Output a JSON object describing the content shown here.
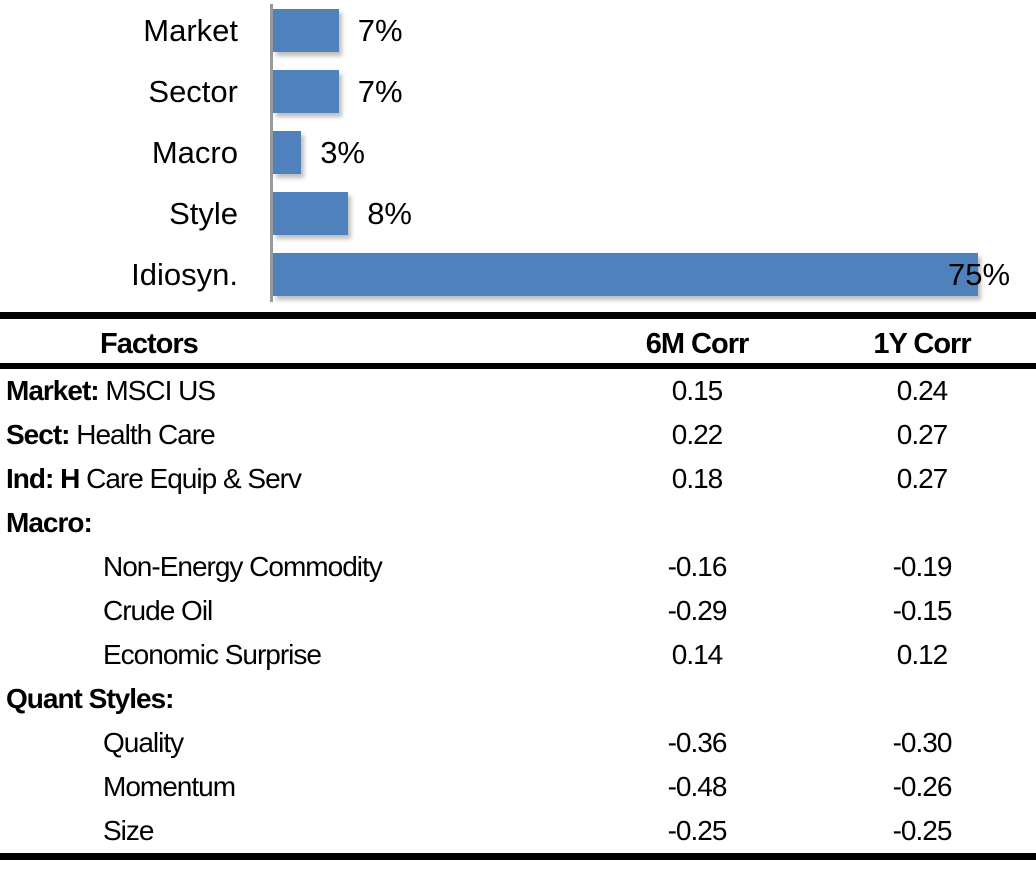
{
  "colors": {
    "bar": "#4f81bd",
    "axis": "#9a9a9a",
    "rule": "#000000",
    "text": "#000000"
  },
  "chart_data": {
    "type": "bar",
    "orientation": "horizontal",
    "title": "",
    "xlabel": "",
    "ylabel": "",
    "categories": [
      "Market",
      "Sector",
      "Macro",
      "Style",
      "Idiosyn."
    ],
    "values": [
      7,
      7,
      3,
      8,
      75
    ],
    "value_labels": [
      "7%",
      "7%",
      "3%",
      "8%",
      "75%"
    ],
    "xlim": [
      0,
      80
    ],
    "grid": false,
    "legend": false
  },
  "table": {
    "headers": [
      "Factors",
      "6M Corr",
      "1Y Corr"
    ],
    "rows": [
      {
        "prefix": "Market:",
        "label": " MSCI US",
        "indent": false,
        "corr_6m": "0.15",
        "corr_1y": "0.24"
      },
      {
        "prefix": "Sect:",
        "label": " Health Care",
        "indent": false,
        "corr_6m": "0.22",
        "corr_1y": "0.27"
      },
      {
        "prefix": "Ind: H",
        "label": " Care Equip & Serv",
        "indent": false,
        "corr_6m": "0.18",
        "corr_1y": "0.27"
      },
      {
        "prefix": "Macro:",
        "label": "",
        "indent": false,
        "corr_6m": "",
        "corr_1y": ""
      },
      {
        "prefix": "",
        "label": "Non-Energy Commodity",
        "indent": true,
        "corr_6m": "-0.16",
        "corr_1y": "-0.19"
      },
      {
        "prefix": "",
        "label": "Crude Oil",
        "indent": true,
        "corr_6m": "-0.29",
        "corr_1y": "-0.15"
      },
      {
        "prefix": "",
        "label": "Economic Surprise",
        "indent": true,
        "corr_6m": "0.14",
        "corr_1y": "0.12"
      },
      {
        "prefix": "Quant Styles:",
        "label": "",
        "indent": false,
        "corr_6m": "",
        "corr_1y": ""
      },
      {
        "prefix": "",
        "label": "Quality",
        "indent": true,
        "corr_6m": "-0.36",
        "corr_1y": "-0.30"
      },
      {
        "prefix": "",
        "label": "Momentum",
        "indent": true,
        "corr_6m": "-0.48",
        "corr_1y": "-0.26"
      },
      {
        "prefix": "",
        "label": "Size",
        "indent": true,
        "corr_6m": "-0.25",
        "corr_1y": "-0.25"
      }
    ]
  }
}
